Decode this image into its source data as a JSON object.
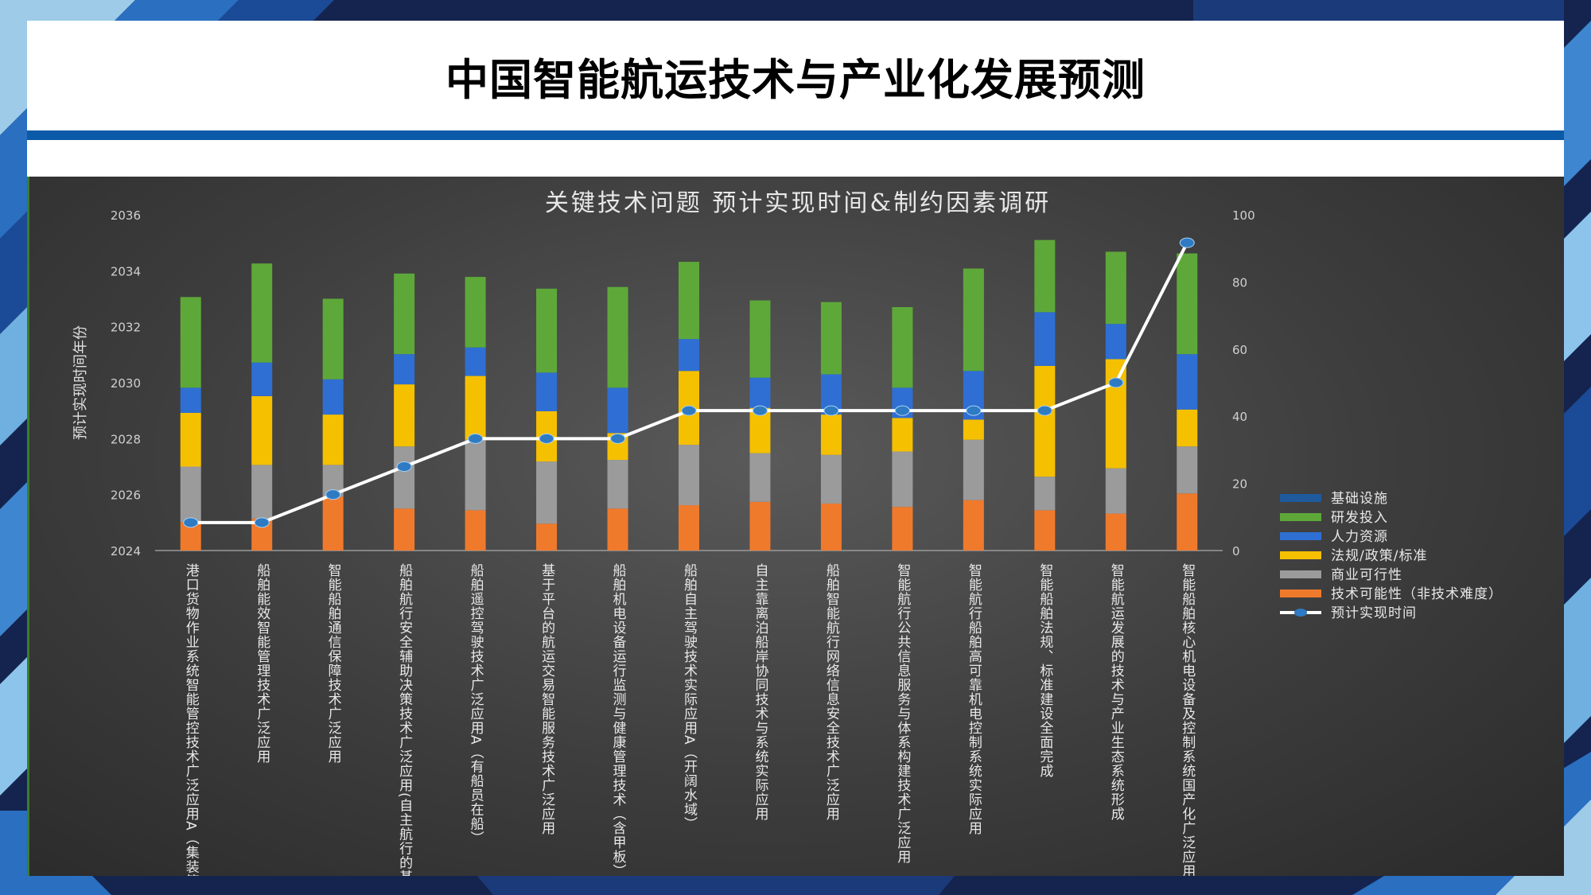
{
  "slide": {
    "title": "中国智能航运技术与产业化发展预测"
  },
  "colors": {
    "title_band": "#ffffff",
    "rule": "#0a5aa8",
    "panel": "#404040",
    "line": "#ffffff",
    "marker": "#2e7bc4"
  },
  "chart_data": {
    "type": "bar",
    "stacked": true,
    "title": "关键技术问题 预计实现时间&制约因素调研",
    "ylabel": "预计实现时间年份",
    "ylim": [
      2024,
      2036
    ],
    "yticks": [
      2024,
      2026,
      2028,
      2030,
      2032,
      2034,
      2036
    ],
    "y2lim": [
      0,
      100
    ],
    "y2ticks": [
      0,
      20,
      40,
      60,
      80,
      100
    ],
    "grid": false,
    "legend_position": "right",
    "categories": [
      "港口货物作业系统智能管控技术广泛应用A（集装箱）",
      "船舶能效智能管理技术广泛应用",
      "智能船舶通信保障技术广泛应用",
      "船舶航行安全辅助决策技术广泛应用(自主航行的基础技术)",
      "船舶遥控驾驶技术广泛应用A（有船员在船）",
      "基于平台的航运交易智能服务技术广泛应用",
      "船舶机电设备运行监测与健康管理技术（含甲板）广泛应用",
      "船舶自主驾驶技术实际应用A（开阔水域）",
      "自主靠离泊船岸协同技术与系统实际应用",
      "船舶智能航行网络信息安全技术广泛应用",
      "智能航行公共信息服务与体系构建技术广泛应用",
      "智能航行船舶高可靠机电控制系统实际应用",
      "智能船舶法规、标准建设全面完成",
      "智能航运发展的技术与产业生态系统形成",
      "智能船舶核心机电设备及控制系统国产化广泛应用"
    ],
    "series": [
      {
        "name": "技术可能性（非技术难度）",
        "color": "#f07a2c",
        "values": [
          8.5,
          9.5,
          16,
          12.5,
          12,
          8,
          12.5,
          13.5,
          14.5,
          14,
          13,
          15,
          12,
          11,
          17
        ]
      },
      {
        "name": "商业可行性",
        "color": "#9b9b9b",
        "values": [
          16.5,
          16,
          9.5,
          18.5,
          21,
          18.5,
          14.5,
          18,
          14.5,
          14.5,
          16.5,
          18,
          10,
          13.5,
          14
        ]
      },
      {
        "name": "法规/政策/标准",
        "color": "#f5c000",
        "values": [
          16,
          20.5,
          15,
          18.5,
          19,
          15,
          8,
          22,
          13.5,
          12,
          10,
          6,
          33,
          32.5,
          11
        ]
      },
      {
        "name": "人力资源",
        "color": "#2f6fd4",
        "values": [
          7.5,
          10,
          10.5,
          9,
          8.5,
          11.5,
          13.5,
          9.5,
          9,
          12,
          9,
          14.5,
          16,
          10.5,
          16.5
        ]
      },
      {
        "name": "研发投入",
        "color": "#5ea83a",
        "values": [
          27,
          29.5,
          24,
          24,
          21,
          25,
          30,
          23,
          23,
          21.5,
          24,
          30.5,
          21.5,
          21.5,
          30
        ]
      },
      {
        "name": "基础设施",
        "color": "#1e5a9c",
        "values": [
          0,
          0,
          0,
          0,
          0,
          0,
          0,
          0,
          0,
          0,
          0,
          0,
          0,
          0,
          0
        ]
      }
    ],
    "line_series": {
      "name": "预计实现时间",
      "values": [
        2025,
        2025,
        2026,
        2027,
        2028,
        2028,
        2028,
        2029,
        2029,
        2029,
        2029,
        2029,
        2029,
        2030,
        2035
      ]
    },
    "legend_order": [
      "基础设施",
      "研发投入",
      "人力资源",
      "法规/政策/标准",
      "商业可行性",
      "技术可能性（非技术难度）",
      "预计实现时间"
    ]
  }
}
